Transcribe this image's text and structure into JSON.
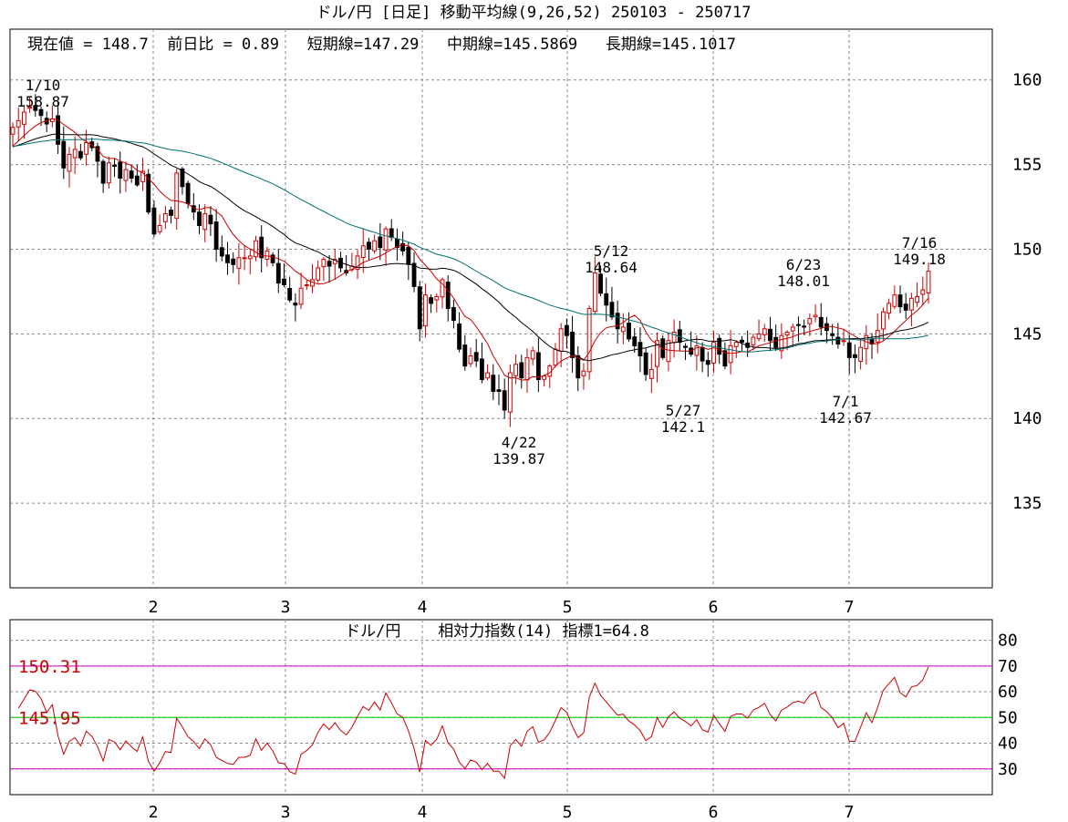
{
  "header": {
    "title": "ドル/円 [日足]  移動平均線(9,26,52)  250103 - 250717",
    "info": "現在値 = 148.7  前日比 = 0.89   短期線=147.29   中期線=145.5869   長期線=145.1017"
  },
  "sub_title": "ドル/円    相対力指数(14) 指標1=64.8",
  "colors": {
    "bull_candle": "#cc0000",
    "bear_candle": "#000000",
    "ma_short": "#cc0000",
    "ma_mid": "#000000",
    "ma_long": "#007070",
    "rsi_line": "#cc0000",
    "level_70_30": "#cc00cc",
    "level_50": "#00cc00",
    "annotation_red": "#cc0000"
  },
  "chart_data": [
    {
      "type": "candlestick",
      "title": "ドル/円 [日足]  移動平均線(9,26,52)  250103 - 250717",
      "date_range": [
        "2025-01-03",
        "2025-07-17"
      ],
      "ylim": [
        130,
        163
      ],
      "yticks": [
        135,
        140,
        145,
        150,
        155,
        160
      ],
      "ytick_labels": [
        "135",
        "140",
        "145",
        "150",
        "155",
        "160"
      ],
      "xtick_labels": [
        "2",
        "3",
        "4",
        "5",
        "6",
        "7"
      ],
      "grid": true,
      "series": [
        {
          "name": "短期線",
          "period": 9,
          "last": 147.29
        },
        {
          "name": "中期線",
          "period": 26,
          "last": 145.5869
        },
        {
          "name": "長期線",
          "period": 52,
          "last": 145.1017
        }
      ],
      "stats": {
        "current": 148.7,
        "change": 0.89
      },
      "annotations": [
        {
          "label": "1/10",
          "value": "158.87",
          "price": 158.87
        },
        {
          "label": "4/22",
          "value": "139.87",
          "price": 139.87
        },
        {
          "label": "5/12",
          "value": "148.64",
          "price": 148.64
        },
        {
          "label": "5/27",
          "value": "142.1",
          "price": 142.1
        },
        {
          "label": "6/23",
          "value": "148.01",
          "price": 148.01
        },
        {
          "label": "7/1",
          "value": "142.67",
          "price": 142.67
        },
        {
          "label": "7/16",
          "value": "149.18",
          "price": 149.18
        }
      ],
      "closes": [
        157.2,
        157.6,
        158.1,
        158.4,
        158.2,
        157.9,
        157.4,
        157.7,
        156.2,
        154.8,
        155.6,
        155.9,
        155.4,
        156.3,
        156.0,
        155.2,
        153.9,
        155.1,
        154.9,
        154.2,
        154.7,
        154.2,
        153.8,
        154.6,
        152.2,
        150.9,
        151.4,
        152.1,
        152.0,
        154.5,
        153.7,
        152.7,
        152.2,
        151.4,
        152.1,
        151.5,
        150.0,
        149.6,
        149.2,
        149.1,
        149.5,
        149.5,
        149.6,
        150.5,
        149.5,
        149.9,
        149.2,
        148.0,
        147.9,
        147.0,
        146.7,
        147.7,
        147.9,
        148.2,
        148.9,
        149.4,
        149.0,
        149.4,
        148.9,
        148.6,
        149.0,
        149.6,
        150.2,
        150.0,
        150.5,
        150.1,
        151.2,
        150.7,
        150.1,
        149.9,
        149.1,
        147.8,
        145.3,
        147.3,
        146.8,
        147.2,
        148.2,
        146.5,
        145.8,
        144.1,
        143.1,
        143.7,
        143.4,
        142.3,
        142.7,
        141.6,
        141.6,
        140.5,
        142.7,
        143.2,
        142.4,
        143.6,
        144.0,
        142.3,
        142.5,
        143.1,
        144.1,
        145.3,
        144.9,
        143.6,
        142.4,
        142.8,
        146.5,
        148.6,
        147.4,
        146.7,
        146.0,
        145.3,
        145.4,
        144.7,
        144.3,
        143.7,
        142.6,
        142.9,
        144.6,
        143.6,
        144.6,
        145.1,
        144.5,
        144.2,
        143.8,
        144.3,
        143.4,
        143.2,
        144.5,
        143.8,
        143.1,
        144.3,
        144.5,
        144.5,
        144.2,
        144.8,
        145.0,
        145.3,
        144.6,
        144.2,
        144.9,
        145.1,
        145.4,
        145.5,
        145.4,
        145.9,
        146.1,
        145.4,
        145.2,
        144.9,
        144.4,
        144.6,
        143.6,
        143.6,
        144.2,
        144.9,
        144.4,
        145.2,
        146.3,
        146.8,
        147.3,
        146.6,
        146.4,
        147.1,
        147.2,
        147.6,
        148.7
      ]
    },
    {
      "type": "line",
      "title": "ドル/円    相対力指数(14) 指標1=64.8",
      "ylim": [
        20,
        88
      ],
      "yticks": [
        30,
        40,
        50,
        60,
        70,
        80
      ],
      "ytick_labels": [
        "30",
        "40",
        "50",
        "60",
        "70",
        "80"
      ],
      "xtick_labels": [
        "2",
        "3",
        "4",
        "5",
        "6",
        "7"
      ],
      "levels": [
        {
          "value": 70,
          "label": "150.31"
        },
        {
          "value": 50,
          "label": "145.95"
        },
        {
          "value": 30,
          "label": ""
        }
      ],
      "series": [
        {
          "name": "相対力指数(14)",
          "last": 64.8
        }
      ]
    }
  ]
}
